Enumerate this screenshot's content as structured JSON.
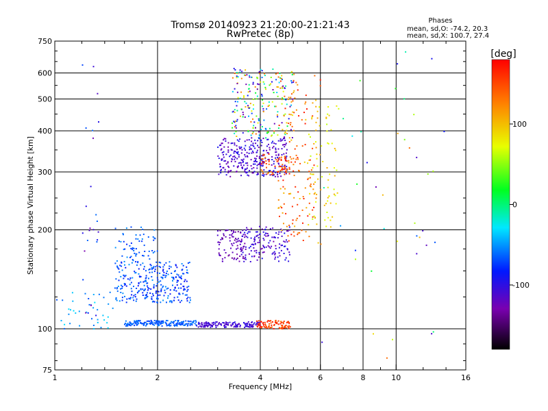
{
  "chart_data": {
    "type": "scatter",
    "title": "Tromsø 20140923 21:20:00-21:21:43",
    "subtitle": "RwPretec (8p)",
    "xlabel": "Frequency [MHz]",
    "ylabel": "Stationary phase Virtual Height [km]",
    "x_scale": "log",
    "y_scale": "log",
    "xlim": [
      1,
      16
    ],
    "ylim": [
      75,
      750
    ],
    "x_ticks": [
      1,
      2,
      4,
      6,
      8,
      10,
      16
    ],
    "x_tick_labels": [
      "1",
      "2",
      "4",
      "6",
      "8",
      "10",
      "16"
    ],
    "x_grid_lines": [
      2,
      4,
      6,
      8,
      10
    ],
    "y_ticks": [
      75,
      100,
      200,
      300,
      400,
      500,
      600,
      750
    ],
    "y_tick_labels": [
      "75",
      "100",
      "200",
      "300",
      "400",
      "500",
      "600",
      "750"
    ],
    "y_grid_lines": [
      100,
      200,
      300,
      400,
      500,
      600
    ],
    "grid": true,
    "phase_stats": {
      "header": "Phases",
      "o_line": "mean, sd,O: -74.2, 20.3",
      "x_line": "mean, sd,X: 100.7, 27.4"
    },
    "colorbar": {
      "label": "[deg]",
      "range": [
        -180,
        180
      ],
      "ticks": [
        100,
        0,
        -100
      ],
      "tick_labels": [
        "100",
        "0",
        "-100"
      ]
    },
    "series_clusters": [
      {
        "freq": [
          1.6,
          2.6
        ],
        "height": [
          102,
          106
        ],
        "phase": [
          -75,
          -55
        ],
        "count": 180
      },
      {
        "freq": [
          2.6,
          4.0
        ],
        "height": [
          101,
          105
        ],
        "phase": [
          -120,
          -95
        ],
        "count": 150
      },
      {
        "freq": [
          3.9,
          4.9
        ],
        "height": [
          100,
          106
        ],
        "phase": [
          130,
          175
        ],
        "count": 90
      },
      {
        "freq": [
          1.5,
          2.5
        ],
        "height": [
          120,
          160
        ],
        "phase": [
          -90,
          -50
        ],
        "count": 300
      },
      {
        "freq": [
          1.5,
          2.0
        ],
        "height": [
          160,
          205
        ],
        "phase": [
          -80,
          -50
        ],
        "count": 60
      },
      {
        "freq": [
          3.0,
          3.6
        ],
        "height": [
          160,
          200
        ],
        "phase": [
          -140,
          -110
        ],
        "count": 80
      },
      {
        "freq": [
          3.5,
          4.9
        ],
        "height": [
          160,
          205
        ],
        "phase": [
          -130,
          -90
        ],
        "count": 150
      },
      {
        "freq": [
          3.0,
          4.8
        ],
        "height": [
          290,
          380
        ],
        "phase": [
          -130,
          -90
        ],
        "count": 300
      },
      {
        "freq": [
          4.0,
          5.2
        ],
        "height": [
          290,
          340
        ],
        "phase": [
          120,
          170
        ],
        "count": 70
      },
      {
        "freq": [
          3.3,
          5.0
        ],
        "height": [
          380,
          620
        ],
        "phase": [
          -140,
          140
        ],
        "count": 220
      },
      {
        "freq": [
          4.5,
          6.0
        ],
        "height": [
          180,
          600
        ],
        "phase": [
          90,
          170
        ],
        "count": 150
      },
      {
        "freq": [
          5.5,
          6.8
        ],
        "height": [
          200,
          500
        ],
        "phase": [
          60,
          110
        ],
        "count": 70
      },
      {
        "freq": [
          1.0,
          1.5
        ],
        "height": [
          100,
          130
        ],
        "phase": [
          -70,
          -30
        ],
        "count": 40
      },
      {
        "freq": [
          1.2,
          1.35
        ],
        "height": [
          100,
          650
        ],
        "phase": [
          -140,
          -60
        ],
        "count": 25
      },
      {
        "freq": [
          6.0,
          14.0
        ],
        "height": [
          80,
          700
        ],
        "phase": [
          -140,
          140
        ],
        "count": 45
      }
    ]
  }
}
